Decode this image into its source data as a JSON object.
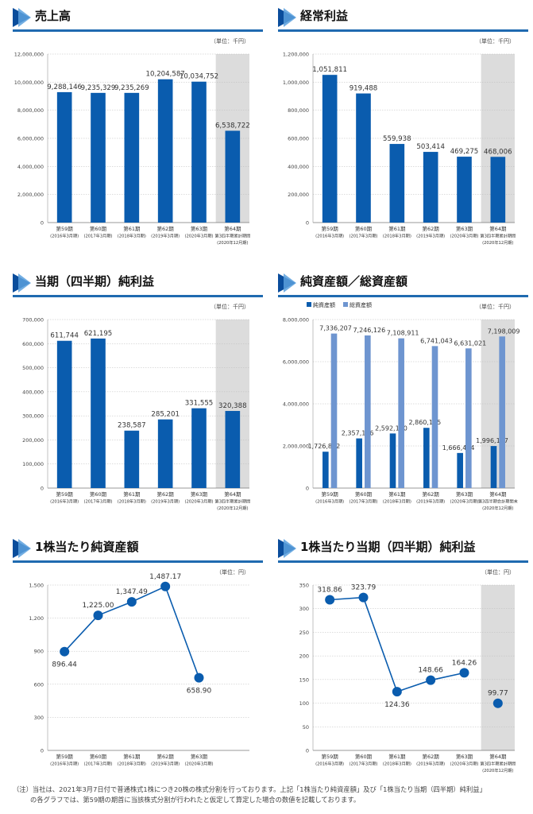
{
  "charts": [
    {
      "title": "売上高",
      "unit": "（単位：千円）",
      "chart_data": {
        "type": "bar",
        "categories": [
          "第59期|(2016年3月期)",
          "第60期|(2017年3月期)",
          "第61期|(2018年3月期)",
          "第62期|(2019年3月期)",
          "第63期|(2020年3月期)",
          "第64期|第3四半期累計期間|(2020年12月期)"
        ],
        "series": [
          {
            "values": [
              9288146,
              9235329,
              9235269,
              10204587,
              10034752,
              6538722
            ]
          }
        ],
        "value_labels": [
          "9,288,146",
          "9,235,329",
          "9,235,269",
          "10,204,587",
          "10,034,752",
          "6,538,722"
        ],
        "ylim": [
          0,
          12000000
        ],
        "yticks": [
          "0",
          "2,000,000",
          "4,000,000",
          "6,000,000",
          "8,000,000",
          "10,000,000",
          "12,000,000"
        ],
        "highlight_last": true
      }
    },
    {
      "title": "経常利益",
      "unit": "（単位：千円）",
      "chart_data": {
        "type": "bar",
        "categories": [
          "第59期|(2016年3月期)",
          "第60期|(2017年3月期)",
          "第61期|(2018年3月期)",
          "第62期|(2019年3月期)",
          "第63期|(2020年3月期)",
          "第64期|第3四半期累計期間|(2020年12月期)"
        ],
        "series": [
          {
            "values": [
              1051811,
              919488,
              559938,
              503414,
              469275,
              468006
            ]
          }
        ],
        "value_labels": [
          "1,051,811",
          "919,488",
          "559,938",
          "503,414",
          "469,275",
          "468,006"
        ],
        "ylim": [
          0,
          1200000
        ],
        "yticks": [
          "0",
          "200,000",
          "400,000",
          "600,000",
          "800,000",
          "1,000,000",
          "1,200,000"
        ],
        "highlight_last": true
      }
    },
    {
      "title": "当期（四半期）純利益",
      "unit": "（単位：千円）",
      "chart_data": {
        "type": "bar",
        "categories": [
          "第59期|(2016年3月期)",
          "第60期|(2017年3月期)",
          "第61期|(2018年3月期)",
          "第62期|(2019年3月期)",
          "第63期|(2020年3月期)",
          "第64期|第3四半期累計期間|(2020年12月期)"
        ],
        "series": [
          {
            "values": [
              611744,
              621195,
              238587,
              285201,
              331555,
              320388
            ]
          }
        ],
        "value_labels": [
          "611,744",
          "621,195",
          "238,587",
          "285,201",
          "331,555",
          "320,388"
        ],
        "ylim": [
          0,
          700000
        ],
        "yticks": [
          "0",
          "100,000",
          "200,000",
          "300,000",
          "400,000",
          "500,000",
          "600,000",
          "700,000"
        ],
        "highlight_last": true
      }
    },
    {
      "title": "純資産額／総資産額",
      "unit": "（単位：千円）",
      "chart_data": {
        "type": "bar",
        "categories": [
          "第59期|(2016年3月期)",
          "第60期|(2017年3月期)",
          "第61期|(2018年3月期)",
          "第62期|(2019年3月期)",
          "第63期|(2020年3月期)",
          "第64期|第3四半期会計期間末|(2020年12月期)"
        ],
        "series": [
          {
            "name": "純資産額",
            "color": "#0a5cae",
            "values": [
              1726892,
              2357196,
              2592150,
              2860195,
              1666484,
              1996137
            ],
            "labels": [
              "1,726,892",
              "2,357,196",
              "2,592,150",
              "2,860,195",
              "1,666,484",
              "1,996,137"
            ]
          },
          {
            "name": "総資産額",
            "color": "#6e95d0",
            "values": [
              7336207,
              7246126,
              7108911,
              6741043,
              6631021,
              7198009
            ],
            "labels": [
              "7,336,207",
              "7,246,126",
              "7,108,911",
              "6,741,043",
              "6,631,021",
              "7,198,009"
            ]
          }
        ],
        "ylim": [
          0,
          8000000
        ],
        "yticks": [
          "0",
          "2,000,000",
          "4,000,000",
          "6,000,000",
          "8,000,000"
        ],
        "legend": "top-left",
        "highlight_last": true
      }
    },
    {
      "title": "1株当たり純資産額",
      "unit": "（単位：円）",
      "chart_data": {
        "type": "line",
        "categories": [
          "第59期|(2016年3月期)",
          "第60期|(2017年3月期)",
          "第61期|(2018年3月期)",
          "第62期|(2019年3月期)",
          "第63期|(2020年3月期)"
        ],
        "series": [
          {
            "values": [
              896.44,
              1225.0,
              1347.49,
              1487.17,
              658.9
            ]
          }
        ],
        "value_labels": [
          "896.44",
          "1,225.00",
          "1,347.49",
          "1,487.17",
          "658.90"
        ],
        "label_pos": [
          "below",
          "above",
          "above",
          "above",
          "below"
        ],
        "ylim": [
          0,
          1500
        ],
        "yticks": [
          "0",
          "300",
          "600",
          "900",
          "1,200",
          "1,500"
        ],
        "highlight_last": false
      }
    },
    {
      "title": "1株当たり当期（四半期）純利益",
      "unit": "（単位：円）",
      "chart_data": {
        "type": "line",
        "categories": [
          "第59期|(2016年3月期)",
          "第60期|(2017年3月期)",
          "第61期|(2018年3月期)",
          "第62期|(2019年3月期)",
          "第63期|(2020年3月期)",
          "第64期|第3四半期累計期間|(2020年12月期)"
        ],
        "series": [
          {
            "values": [
              318.86,
              323.79,
              124.36,
              148.66,
              164.26,
              99.77
            ]
          }
        ],
        "value_labels": [
          "318.86",
          "323.79",
          "124.36",
          "148.66",
          "164.26",
          "99.77"
        ],
        "label_pos": [
          "above",
          "above",
          "below",
          "above",
          "above",
          "above"
        ],
        "connect_last": false,
        "ylim": [
          0,
          350
        ],
        "yticks": [
          "0",
          "50",
          "100",
          "150",
          "200",
          "250",
          "300",
          "350"
        ],
        "highlight_last": true
      }
    }
  ],
  "footnote": {
    "line1": "（注）当社は、2021年3月7日付で普通株式1株につき20株の株式分割を行っております。上記「1株当たり純資産額」及び「1株当たり当期（四半期）純利益」",
    "line2": "の各グラフでは、第59期の期首に当該株式分割が行われたと仮定して算定した場合の数値を記載しております。"
  }
}
